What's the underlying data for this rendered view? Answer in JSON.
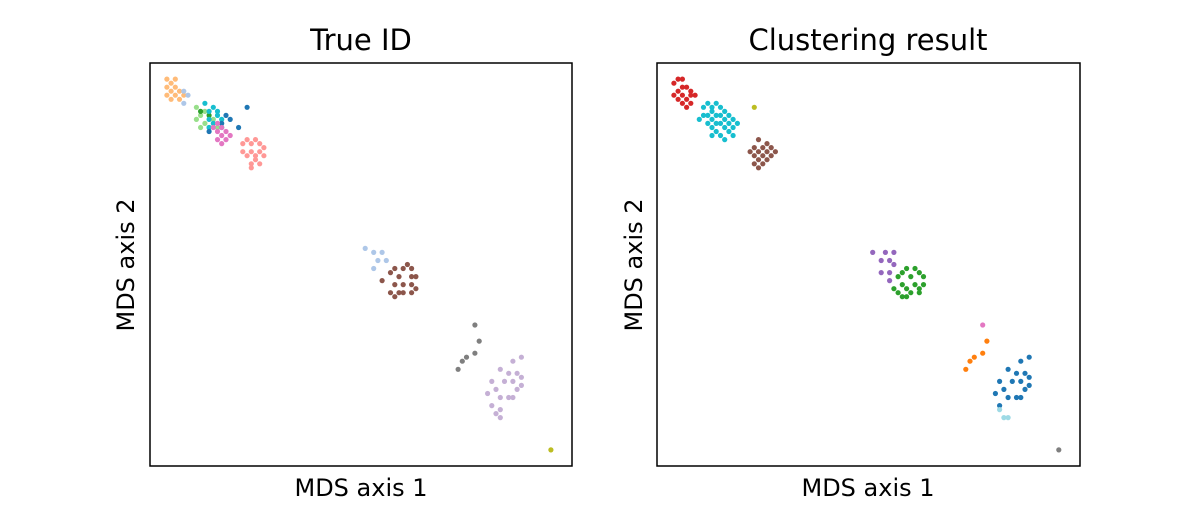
{
  "chart_data": [
    {
      "type": "scatter",
      "title": "True ID",
      "xlabel": "MDS axis 1",
      "ylabel": "MDS axis 2",
      "xlim": [
        0,
        100
      ],
      "ylim": [
        0,
        100
      ],
      "grid": false,
      "legend": "none",
      "ticks": "none",
      "series": [
        {
          "color": "#ffbb78",
          "points": [
            [
              4,
              96
            ],
            [
              5,
              95
            ],
            [
              6,
              96
            ],
            [
              4,
              94
            ],
            [
              6,
              94
            ],
            [
              5,
              93
            ],
            [
              7,
              93
            ],
            [
              4,
              92
            ],
            [
              6,
              92
            ],
            [
              5,
              91
            ],
            [
              7,
              91
            ],
            [
              8,
              92
            ]
          ]
        },
        {
          "color": "#aec7e8",
          "points": [
            [
              8,
              93
            ],
            [
              9,
              92
            ],
            [
              8,
              90
            ],
            [
              51,
              54
            ],
            [
              53,
              53
            ],
            [
              55,
              53
            ],
            [
              54,
              51
            ],
            [
              56,
              51
            ],
            [
              53,
              49
            ]
          ]
        },
        {
          "color": "#98df8a",
          "points": [
            [
              11,
              89
            ],
            [
              12,
              87
            ],
            [
              13,
              88
            ],
            [
              11,
              86
            ],
            [
              13,
              85
            ],
            [
              14,
              84
            ],
            [
              12,
              84
            ],
            [
              15,
              86
            ],
            [
              16,
              84
            ]
          ]
        },
        {
          "color": "#2ca02c",
          "points": [
            [
              12,
              88
            ],
            [
              14,
              87
            ]
          ]
        },
        {
          "color": "#17becf",
          "points": [
            [
              13,
              90
            ],
            [
              14,
              88
            ],
            [
              15,
              89
            ],
            [
              16,
              88
            ],
            [
              14,
              86
            ],
            [
              16,
              87
            ],
            [
              17,
              86
            ],
            [
              15,
              85
            ],
            [
              17,
              84
            ],
            [
              14,
              84
            ]
          ]
        },
        {
          "color": "#1f77b4",
          "points": [
            [
              18,
              87
            ],
            [
              17,
              85
            ],
            [
              19,
              86
            ],
            [
              21,
              84
            ],
            [
              23,
              89
            ],
            [
              14,
              83
            ]
          ]
        },
        {
          "color": "#e377c2",
          "points": [
            [
              15,
              84
            ],
            [
              16,
              85
            ],
            [
              17,
              84
            ],
            [
              16,
              83
            ],
            [
              17,
              82
            ],
            [
              18,
              83
            ],
            [
              16,
              81
            ],
            [
              17,
              80
            ],
            [
              18,
              81
            ],
            [
              19,
              82
            ]
          ]
        },
        {
          "color": "#ff9896",
          "points": [
            [
              22,
              80
            ],
            [
              23,
              81
            ],
            [
              24,
              80
            ],
            [
              25,
              81
            ],
            [
              26,
              80
            ],
            [
              22,
              78
            ],
            [
              24,
              78
            ],
            [
              26,
              78
            ],
            [
              27,
              79
            ],
            [
              23,
              77
            ],
            [
              25,
              77
            ],
            [
              27,
              77
            ],
            [
              24,
              75
            ],
            [
              26,
              75
            ],
            [
              25,
              76
            ],
            [
              24,
              74
            ]
          ]
        },
        {
          "color": "#8c564b",
          "points": [
            [
              58,
              49
            ],
            [
              60,
              49
            ],
            [
              61,
              50
            ],
            [
              62,
              49
            ],
            [
              57,
              48
            ],
            [
              59,
              47
            ],
            [
              62,
              47
            ],
            [
              63,
              47
            ],
            [
              55,
              46
            ],
            [
              58,
              45
            ],
            [
              60,
              45
            ],
            [
              62,
              45
            ],
            [
              63,
              44
            ],
            [
              57,
              43
            ],
            [
              59,
              43
            ],
            [
              58,
              42
            ],
            [
              60,
              43
            ],
            [
              62,
              43
            ]
          ]
        },
        {
          "color": "#7f7f7f",
          "points": [
            [
              77,
              35
            ],
            [
              78,
              31
            ],
            [
              77,
              28
            ],
            [
              75,
              27
            ],
            [
              74,
              26
            ],
            [
              73,
              24
            ]
          ]
        },
        {
          "color": "#c5b0d5",
          "points": [
            [
              86,
              26
            ],
            [
              88,
              27
            ],
            [
              83,
              24
            ],
            [
              85,
              23
            ],
            [
              87,
              23
            ],
            [
              88,
              22
            ],
            [
              81,
              21
            ],
            [
              84,
              21
            ],
            [
              86,
              21
            ],
            [
              88,
              20
            ],
            [
              82,
              19
            ],
            [
              87,
              19
            ],
            [
              80,
              18
            ],
            [
              83,
              17
            ],
            [
              85,
              17
            ],
            [
              86,
              17
            ],
            [
              81,
              15
            ],
            [
              83,
              14
            ],
            [
              82,
              13
            ],
            [
              83,
              12
            ]
          ]
        },
        {
          "color": "#bcbd22",
          "points": [
            [
              95,
              4
            ]
          ]
        }
      ]
    },
    {
      "type": "scatter",
      "title": "Clustering result",
      "xlabel": "MDS axis 1",
      "ylabel": "MDS axis 2",
      "xlim": [
        0,
        100
      ],
      "ylim": [
        0,
        100
      ],
      "grid": false,
      "legend": "none",
      "ticks": "none",
      "series": [
        {
          "color": "#d62728",
          "points": [
            [
              5,
              96
            ],
            [
              6,
              96
            ],
            [
              4,
              95
            ],
            [
              6,
              94
            ],
            [
              7,
              94
            ],
            [
              8,
              93
            ],
            [
              5,
              93
            ],
            [
              4,
              92
            ],
            [
              6,
              92
            ],
            [
              8,
              92
            ],
            [
              7,
              91
            ],
            [
              5,
              91
            ],
            [
              9,
              92
            ],
            [
              6,
              90
            ],
            [
              8,
              90
            ],
            [
              7,
              89
            ]
          ]
        },
        {
          "color": "#17becf",
          "points": [
            [
              11,
              89
            ],
            [
              12,
              90
            ],
            [
              13,
              89
            ],
            [
              14,
              90
            ],
            [
              13,
              88
            ],
            [
              15,
              89
            ],
            [
              16,
              88
            ],
            [
              11,
              87
            ],
            [
              12,
              87
            ],
            [
              14,
              87
            ],
            [
              15,
              87
            ],
            [
              17,
              87
            ],
            [
              10,
              86
            ],
            [
              13,
              86
            ],
            [
              16,
              86
            ],
            [
              18,
              86
            ],
            [
              12,
              85
            ],
            [
              14,
              85
            ],
            [
              15,
              85
            ],
            [
              17,
              85
            ],
            [
              19,
              85
            ],
            [
              13,
              84
            ],
            [
              16,
              84
            ],
            [
              18,
              84
            ],
            [
              14,
              83
            ],
            [
              17,
              83
            ],
            [
              15,
              82
            ],
            [
              13,
              82
            ],
            [
              16,
              81
            ],
            [
              18,
              82
            ]
          ]
        },
        {
          "color": "#bcbd22",
          "points": [
            [
              23,
              89
            ]
          ]
        },
        {
          "color": "#8c564b",
          "points": [
            [
              24,
              81
            ],
            [
              26,
              80
            ],
            [
              23,
              79
            ],
            [
              25,
              79
            ],
            [
              27,
              79
            ],
            [
              22,
              78
            ],
            [
              24,
              78
            ],
            [
              26,
              78
            ],
            [
              28,
              78
            ],
            [
              23,
              77
            ],
            [
              25,
              77
            ],
            [
              27,
              77
            ],
            [
              24,
              76
            ],
            [
              26,
              76
            ],
            [
              23,
              75
            ],
            [
              25,
              75
            ],
            [
              24,
              74
            ]
          ]
        },
        {
          "color": "#9467bd",
          "points": [
            [
              51,
              53
            ],
            [
              54,
              53
            ],
            [
              56,
              53
            ],
            [
              53,
              51
            ],
            [
              55,
              51
            ],
            [
              56,
              50
            ],
            [
              53,
              48
            ],
            [
              55,
              48
            ],
            [
              55,
              46
            ]
          ]
        },
        {
          "color": "#2ca02c",
          "points": [
            [
              59,
              49
            ],
            [
              61,
              49
            ],
            [
              58,
              48
            ],
            [
              62,
              48
            ],
            [
              57,
              47
            ],
            [
              60,
              47
            ],
            [
              63,
              47
            ],
            [
              58,
              45
            ],
            [
              61,
              45
            ],
            [
              63,
              45
            ],
            [
              56,
              44
            ],
            [
              59,
              44
            ],
            [
              62,
              44
            ],
            [
              57,
              43
            ],
            [
              60,
              43
            ],
            [
              62,
              43
            ],
            [
              58,
              42
            ],
            [
              59,
              42
            ]
          ]
        },
        {
          "color": "#e377c2",
          "points": [
            [
              77,
              35
            ]
          ]
        },
        {
          "color": "#ff7f0e",
          "points": [
            [
              78,
              31
            ],
            [
              77,
              28
            ],
            [
              75,
              27
            ],
            [
              74,
              26
            ],
            [
              73,
              24
            ]
          ]
        },
        {
          "color": "#1f77b4",
          "points": [
            [
              86,
              26
            ],
            [
              88,
              27
            ],
            [
              83,
              24
            ],
            [
              85,
              23
            ],
            [
              87,
              23
            ],
            [
              88,
              22
            ],
            [
              81,
              21
            ],
            [
              84,
              21
            ],
            [
              86,
              21
            ],
            [
              88,
              20
            ],
            [
              82,
              19
            ],
            [
              87,
              19
            ],
            [
              80,
              18
            ],
            [
              83,
              17
            ],
            [
              85,
              17
            ],
            [
              86,
              17
            ],
            [
              81,
              15
            ]
          ]
        },
        {
          "color": "#9edae5",
          "points": [
            [
              81,
              14
            ],
            [
              82,
              12
            ],
            [
              83,
              12
            ]
          ]
        },
        {
          "color": "#7f7f7f",
          "points": [
            [
              95,
              4
            ]
          ]
        }
      ]
    }
  ]
}
